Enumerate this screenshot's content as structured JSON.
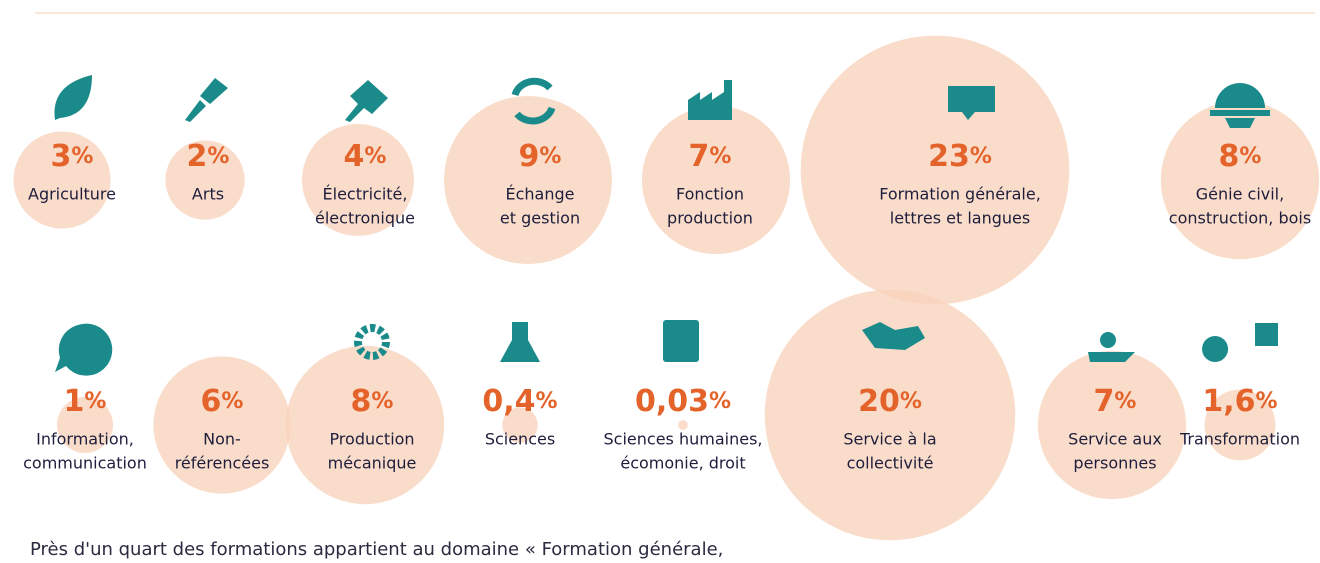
{
  "chart_data": {
    "type": "bubble",
    "categories": [
      [
        "Agriculture"
      ],
      [
        "Arts"
      ],
      [
        "Électricité,",
        "électronique"
      ],
      [
        "Échange",
        "et gestion"
      ],
      [
        "Fonction",
        "production"
      ],
      [
        "Formation générale,",
        "lettres et langues"
      ],
      [
        "Génie civil,",
        "construction, bois"
      ],
      [
        "Information,",
        "communication"
      ],
      [
        "Non-",
        "référencées"
      ],
      [
        "Production",
        "mécanique"
      ],
      [
        "Sciences"
      ],
      [
        "Sciences humaines,",
        "écomonie, droit"
      ],
      [
        "Service à la",
        "collectivité"
      ],
      [
        "Service aux",
        "personnes"
      ],
      [
        "Transformation"
      ]
    ],
    "values": [
      3,
      2,
      4,
      9,
      7,
      23,
      8,
      1,
      6,
      8,
      0.4,
      0.03,
      20,
      7,
      1.6
    ],
    "value_labels": [
      "3%",
      "2%",
      "4%",
      "9%",
      "7%",
      "23%",
      "8%",
      "1%",
      "6%",
      "8%",
      "0,4%",
      "0,03%",
      "20%",
      "7%",
      "1,6%"
    ],
    "color": "#f9d3bd",
    "note": "Près d'un quart des formations appartient au domaine « Formation générale,"
  }
}
